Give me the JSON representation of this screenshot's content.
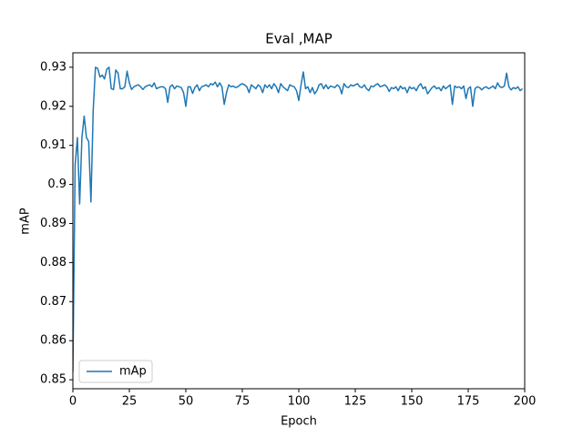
{
  "chart_data": {
    "type": "line",
    "title": "Eval ,MAP",
    "x_label": "Epoch",
    "y_label": "mAP",
    "xlim": [
      0,
      200
    ],
    "xticks": [
      0,
      25,
      50,
      75,
      100,
      125,
      150,
      175,
      200
    ],
    "ylim": [
      0.8477,
      0.9337
    ],
    "yticks": [
      0.85,
      0.86,
      0.87,
      0.88,
      0.89,
      0.9,
      0.91,
      0.92,
      0.93
    ],
    "legend": "lower left",
    "grid": false,
    "x": [
      0,
      1,
      2,
      3,
      4,
      5,
      6,
      7,
      8,
      9,
      10,
      11,
      12,
      13,
      14,
      15,
      16,
      17,
      18,
      19,
      20,
      21,
      22,
      23,
      24,
      25,
      26,
      27,
      28,
      29,
      30,
      31,
      32,
      33,
      34,
      35,
      36,
      37,
      38,
      39,
      40,
      41,
      42,
      43,
      44,
      45,
      46,
      47,
      48,
      49,
      50,
      51,
      52,
      53,
      54,
      55,
      56,
      57,
      58,
      59,
      60,
      61,
      62,
      63,
      64,
      65,
      66,
      67,
      68,
      69,
      70,
      71,
      72,
      73,
      74,
      75,
      76,
      77,
      78,
      79,
      80,
      81,
      82,
      83,
      84,
      85,
      86,
      87,
      88,
      89,
      90,
      91,
      92,
      93,
      94,
      95,
      96,
      97,
      98,
      99,
      100,
      101,
      102,
      103,
      104,
      105,
      106,
      107,
      108,
      109,
      110,
      111,
      112,
      113,
      114,
      115,
      116,
      117,
      118,
      119,
      120,
      121,
      122,
      123,
      124,
      125,
      126,
      127,
      128,
      129,
      130,
      131,
      132,
      133,
      134,
      135,
      136,
      137,
      138,
      139,
      140,
      141,
      142,
      143,
      144,
      145,
      146,
      147,
      148,
      149,
      150,
      151,
      152,
      153,
      154,
      155,
      156,
      157,
      158,
      159,
      160,
      161,
      162,
      163,
      164,
      165,
      166,
      167,
      168,
      169,
      170,
      171,
      172,
      173,
      174,
      175,
      176,
      177,
      178,
      179,
      180,
      181,
      182,
      183,
      184,
      185,
      186,
      187,
      188,
      189,
      190,
      191,
      192,
      193,
      194,
      195,
      196,
      197,
      198,
      199
    ],
    "series": [
      {
        "name": "mAp",
        "color": "#1f77b4",
        "values": [
          0.852,
          0.905,
          0.912,
          0.895,
          0.912,
          0.9175,
          0.912,
          0.911,
          0.8955,
          0.919,
          0.93,
          0.9297,
          0.9275,
          0.928,
          0.927,
          0.9295,
          0.93,
          0.9245,
          0.9243,
          0.9293,
          0.9285,
          0.9245,
          0.9245,
          0.925,
          0.929,
          0.926,
          0.9243,
          0.925,
          0.9253,
          0.9255,
          0.925,
          0.9243,
          0.925,
          0.9253,
          0.9255,
          0.925,
          0.926,
          0.9245,
          0.9248,
          0.925,
          0.925,
          0.9245,
          0.921,
          0.925,
          0.9255,
          0.9245,
          0.9252,
          0.925,
          0.9248,
          0.9235,
          0.92,
          0.925,
          0.925,
          0.9233,
          0.9248,
          0.9255,
          0.924,
          0.925,
          0.9252,
          0.9255,
          0.925,
          0.9258,
          0.9255,
          0.9262,
          0.925,
          0.926,
          0.925,
          0.9205,
          0.9235,
          0.9255,
          0.925,
          0.9252,
          0.9248,
          0.925,
          0.9255,
          0.9258,
          0.9255,
          0.925,
          0.9235,
          0.9255,
          0.925,
          0.9245,
          0.9255,
          0.925,
          0.9235,
          0.9255,
          0.9248,
          0.9255,
          0.9245,
          0.9258,
          0.925,
          0.9235,
          0.9258,
          0.925,
          0.9245,
          0.924,
          0.9255,
          0.9252,
          0.925,
          0.924,
          0.9215,
          0.9255,
          0.9288,
          0.9245,
          0.925,
          0.9235,
          0.9248,
          0.9232,
          0.924,
          0.9255,
          0.9258,
          0.9245,
          0.9255,
          0.9245,
          0.9252,
          0.925,
          0.9248,
          0.9255,
          0.925,
          0.9232,
          0.9258,
          0.925,
          0.9248,
          0.9255,
          0.9252,
          0.9255,
          0.9258,
          0.925,
          0.9248,
          0.9255,
          0.9245,
          0.924,
          0.9252,
          0.925,
          0.9255,
          0.9258,
          0.925,
          0.9252,
          0.9255,
          0.925,
          0.9238,
          0.9248,
          0.9245,
          0.925,
          0.924,
          0.9252,
          0.9245,
          0.9248,
          0.9235,
          0.925,
          0.9245,
          0.9248,
          0.924,
          0.9252,
          0.9258,
          0.9245,
          0.925,
          0.9232,
          0.924,
          0.9248,
          0.9252,
          0.9245,
          0.9248,
          0.924,
          0.9252,
          0.9245,
          0.925,
          0.9255,
          0.9205,
          0.9252,
          0.9248,
          0.925,
          0.9245,
          0.9252,
          0.922,
          0.9245,
          0.925,
          0.92,
          0.9245,
          0.925,
          0.9248,
          0.9242,
          0.9248,
          0.925,
          0.9245,
          0.9248,
          0.9252,
          0.9245,
          0.926,
          0.925,
          0.9248,
          0.9252,
          0.9285,
          0.925,
          0.9242,
          0.9248,
          0.9245,
          0.925,
          0.924,
          0.9245
        ]
      }
    ]
  }
}
